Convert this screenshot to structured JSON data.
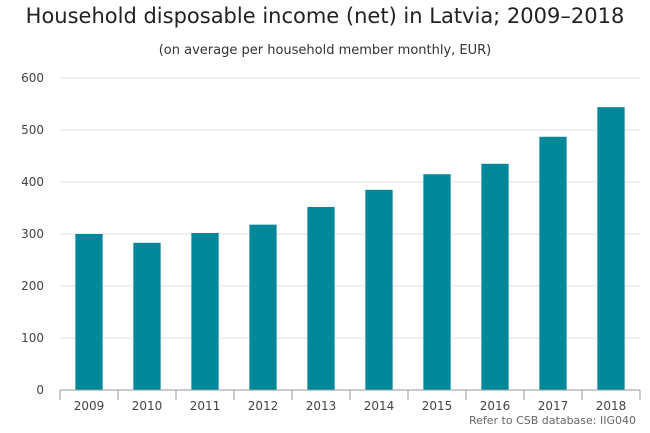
{
  "chart_data": {
    "type": "bar",
    "title": "Household disposable income (net) in Latvia; 2009–2018",
    "subtitle": "(on average per household member monthly, EUR)",
    "categories": [
      "2009",
      "2010",
      "2011",
      "2012",
      "2013",
      "2014",
      "2015",
      "2016",
      "2017",
      "2018"
    ],
    "values": [
      300,
      283,
      302,
      318,
      352,
      385,
      415,
      435,
      487,
      544
    ],
    "ylim": [
      0,
      600
    ],
    "yticks": [
      0,
      100,
      200,
      300,
      400,
      500,
      600
    ],
    "xlabel": "",
    "ylabel": "",
    "grid": true,
    "bar_color": "#00889a"
  },
  "source_note": "Refer to CSB database: IIG040"
}
